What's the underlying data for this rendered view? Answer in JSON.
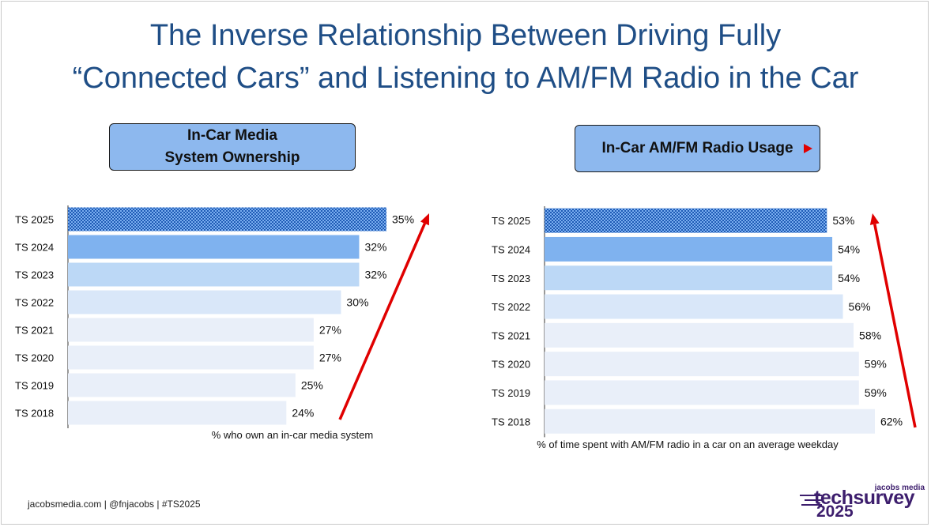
{
  "title": {
    "line1": "The Inverse Relationship Between Driving Fully",
    "line2": "“Connected Cars” and Listening to AM/FM Radio in the Car"
  },
  "colors": {
    "title": "#1f4e86",
    "header_fill": "#8db8ee",
    "bar_2025": "#2e6fcc",
    "bar_2024": "#7fb2ef",
    "bar_2023": "#bcd8f6",
    "bar_2022": "#d9e7f9",
    "bar_older": "#e9eff9",
    "arrow": "#e00000",
    "logo": "#3d1e6d"
  },
  "chart_data": [
    {
      "type": "bar",
      "orientation": "horizontal",
      "title": "In-Car Media System Ownership",
      "title_lines": [
        "In-Car Media",
        "System Ownership"
      ],
      "xlabel": "% who own an in-car media system",
      "categories": [
        "TS 2025",
        "TS 2024",
        "TS 2023",
        "TS 2022",
        "TS 2021",
        "TS 2020",
        "TS 2019",
        "TS 2018"
      ],
      "values": [
        35,
        32,
        32,
        30,
        27,
        27,
        25,
        24
      ],
      "labels": [
        "35%",
        "32%",
        "32%",
        "30%",
        "27%",
        "27%",
        "25%",
        "24%"
      ],
      "highlight": "TS 2025",
      "trend_arrow": "up",
      "xlim": [
        0,
        35
      ]
    },
    {
      "type": "bar",
      "orientation": "horizontal",
      "title": "In-Car AM/FM Radio Usage",
      "title_lines": [
        "In-Car AM/FM Radio Usage"
      ],
      "xlabel": "% of time spent with AM/FM radio in a car on an average weekday",
      "categories": [
        "TS 2025",
        "TS 2024",
        "TS 2023",
        "TS 2022",
        "TS 2021",
        "TS 2020",
        "TS 2019",
        "TS 2018"
      ],
      "values": [
        53,
        54,
        54,
        56,
        58,
        59,
        59,
        62
      ],
      "labels": [
        "53%",
        "54%",
        "54%",
        "56%",
        "58%",
        "59%",
        "59%",
        "62%"
      ],
      "highlight": "TS 2025",
      "trend_arrow": "up",
      "xlim": [
        0,
        62
      ]
    }
  ],
  "footer": {
    "text": "jacobsmedia.com   |   @fnjacobs   |   #TS2025"
  },
  "logo": {
    "top": "jacobs media",
    "main": "techsurvey",
    "year": "2025"
  }
}
